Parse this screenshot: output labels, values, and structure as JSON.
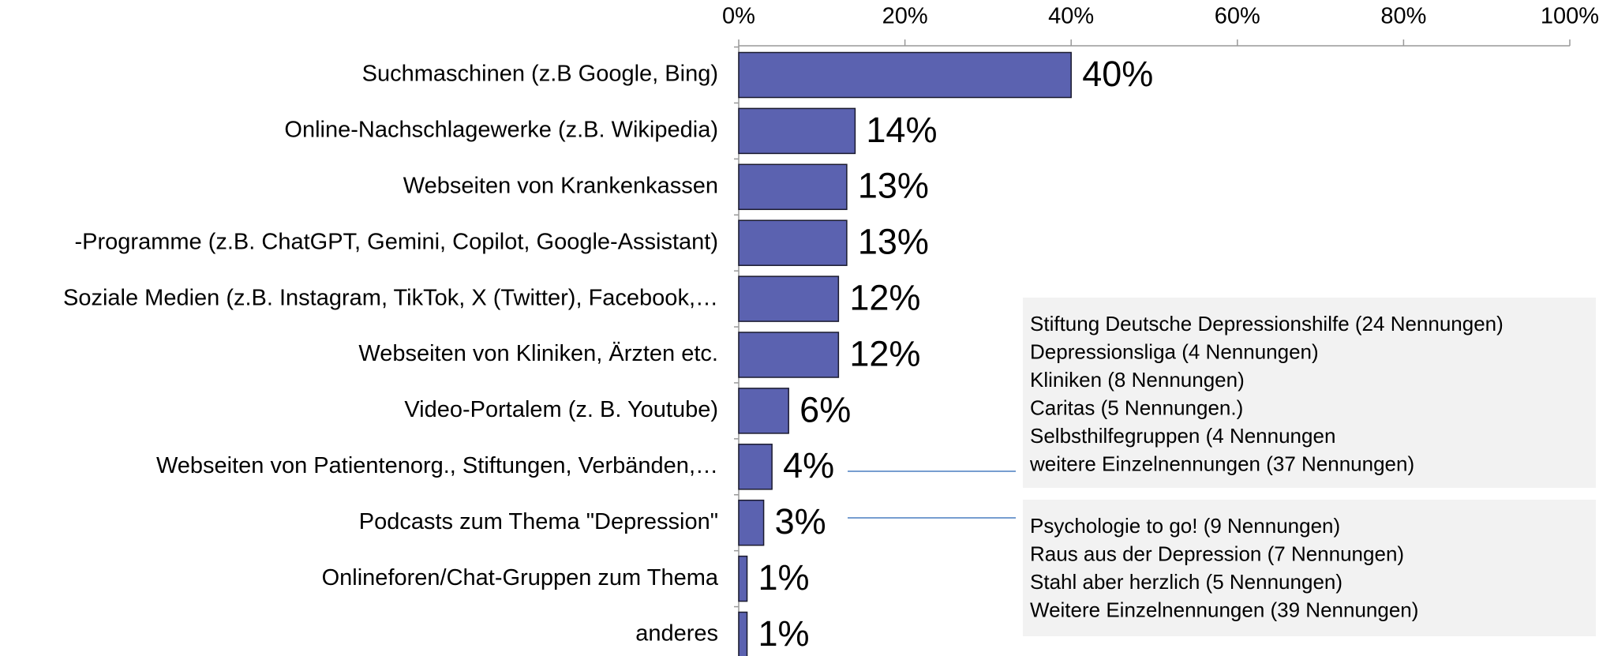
{
  "chart_data": {
    "type": "bar",
    "orientation": "horizontal",
    "categories": [
      "Suchmaschinen (z.B Google, Bing)",
      "Online-Nachschlagewerke (z.B. Wikipedia)",
      "Webseiten von Krankenkassen",
      "-Programme (z.B. ChatGPT, Gemini, Copilot, Google-Assistant)",
      "Soziale Medien (z.B. Instagram, TikTok, X (Twitter), Facebook,…",
      "Webseiten von Kliniken, Ärzten etc.",
      "Video-Portalem (z. B. Youtube)",
      "Webseiten von Patientenorg., Stiftungen, Verbänden,…",
      "Podcasts zum Thema \"Depression\"",
      "Onlineforen/Chat-Gruppen zum Thema",
      "anderes"
    ],
    "values": [
      40,
      14,
      13,
      13,
      12,
      12,
      6,
      4,
      3,
      1,
      1
    ],
    "value_labels": [
      "40%",
      "14%",
      "13%",
      "13%",
      "12%",
      "12%",
      "6%",
      "4%",
      "3%",
      "1%",
      "1%"
    ],
    "color": "#5b62b0",
    "xlim": [
      0,
      100
    ],
    "xticks": [
      {
        "value": 0,
        "label": "0%"
      },
      {
        "value": 20,
        "label": "20%"
      },
      {
        "value": 40,
        "label": "40%"
      },
      {
        "value": 60,
        "label": "60%"
      },
      {
        "value": 80,
        "label": "80%"
      },
      {
        "value": 100,
        "label": "100%"
      }
    ],
    "annotations": [
      [
        "Stiftung Deutsche Depressionshilfe (24 Nennungen)",
        "Depressionsliga (4 Nennungen)",
        "Kliniken (8 Nennungen)",
        "Caritas (5 Nennungen.)",
        "Selbsthilfegruppen (4 Nennungen",
        "weitere Einzelnennungen (37 Nennungen)"
      ],
      [
        "Psychologie to go! (9 Nennungen)",
        "Raus aus der Depression (7 Nennungen)",
        "Stahl aber herzlich (5 Nennungen)",
        "Weitere Einzelnennungen (39 Nennungen)"
      ]
    ]
  }
}
